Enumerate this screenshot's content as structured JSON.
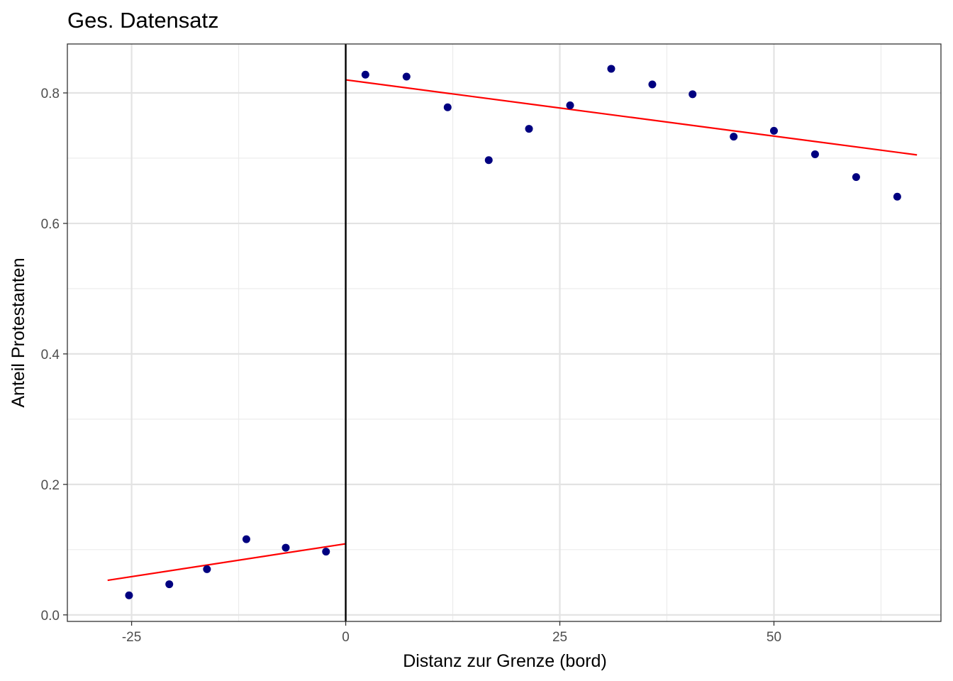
{
  "chart_data": {
    "type": "scatter",
    "title": "Ges. Datensatz",
    "xlabel": "Distanz zur Grenze (bord)",
    "ylabel": "Anteil Protestanten",
    "xlim": [
      -32.5,
      69.5
    ],
    "ylim": [
      -0.01,
      0.875
    ],
    "x_ticks": [
      -25,
      0,
      25,
      50
    ],
    "x_tick_labels": [
      "-25",
      "0",
      "25",
      "50"
    ],
    "y_ticks": [
      0.0,
      0.2,
      0.4,
      0.6,
      0.8
    ],
    "y_tick_labels": [
      "0.0",
      "0.2",
      "0.4",
      "0.6",
      "0.8"
    ],
    "grid": true,
    "cutoff_x": 0,
    "series": [
      {
        "type": "scatter",
        "color": "#000080",
        "points": [
          {
            "x": -25.3,
            "y": 0.03
          },
          {
            "x": -20.6,
            "y": 0.047
          },
          {
            "x": -16.2,
            "y": 0.07
          },
          {
            "x": -11.6,
            "y": 0.116
          },
          {
            "x": -7.0,
            "y": 0.103
          },
          {
            "x": -2.3,
            "y": 0.097
          },
          {
            "x": 2.3,
            "y": 0.828
          },
          {
            "x": 7.1,
            "y": 0.825
          },
          {
            "x": 11.9,
            "y": 0.778
          },
          {
            "x": 16.7,
            "y": 0.697
          },
          {
            "x": 21.4,
            "y": 0.745
          },
          {
            "x": 26.2,
            "y": 0.781
          },
          {
            "x": 31.0,
            "y": 0.837
          },
          {
            "x": 35.8,
            "y": 0.813
          },
          {
            "x": 40.5,
            "y": 0.798
          },
          {
            "x": 45.3,
            "y": 0.733
          },
          {
            "x": 50.0,
            "y": 0.742
          },
          {
            "x": 54.8,
            "y": 0.706
          },
          {
            "x": 59.6,
            "y": 0.671
          },
          {
            "x": 64.4,
            "y": 0.641
          }
        ]
      },
      {
        "type": "line",
        "color": "#ff0000",
        "segments": [
          [
            {
              "x": -27.8,
              "y": 0.053
            },
            {
              "x": 0,
              "y": 0.109
            }
          ],
          [
            {
              "x": 0,
              "y": 0.82
            },
            {
              "x": 66.7,
              "y": 0.705
            }
          ]
        ]
      }
    ]
  }
}
